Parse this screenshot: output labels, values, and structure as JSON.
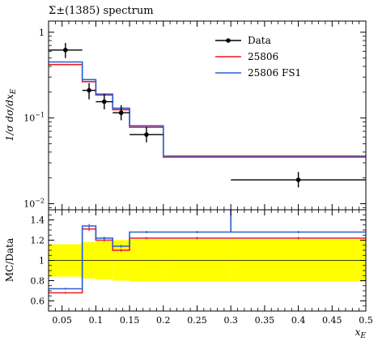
{
  "chart_data": [
    {
      "type": "line",
      "panel": "main",
      "title": "Σ±(1385) spectrum",
      "ylabel": "1/σ dσ/dx_E",
      "xlabel": "",
      "x_scale": "linear",
      "y_scale": "log",
      "xlim": [
        0.03,
        0.5
      ],
      "ylim": [
        0.0085,
        1.35
      ],
      "y_ticks": [
        {
          "value": 1,
          "label": "1"
        },
        {
          "value": 0.1,
          "label": "10^-1"
        },
        {
          "value": 0.01,
          "label": "10^-2"
        }
      ],
      "bin_edges": [
        0.03,
        0.08,
        0.1,
        0.125,
        0.15,
        0.2,
        0.3,
        0.5
      ],
      "series": [
        {
          "name": "Data",
          "style": "points",
          "color": "#000000",
          "points": [
            {
              "x": 0.055,
              "xerr": [
                0.03,
                0.08
              ],
              "y": 0.62,
              "yerr": [
                0.5,
                0.75
              ]
            },
            {
              "x": 0.09,
              "xerr": [
                0.08,
                0.1
              ],
              "y": 0.21,
              "yerr": [
                0.165,
                0.255
              ]
            },
            {
              "x": 0.1125,
              "xerr": [
                0.1,
                0.125
              ],
              "y": 0.155,
              "yerr": [
                0.126,
                0.19
              ]
            },
            {
              "x": 0.1375,
              "xerr": [
                0.125,
                0.15
              ],
              "y": 0.115,
              "yerr": [
                0.094,
                0.141
              ]
            },
            {
              "x": 0.175,
              "xerr": [
                0.15,
                0.2
              ],
              "y": 0.064,
              "yerr": [
                0.052,
                0.079
              ]
            },
            {
              "x": 0.4,
              "xerr": [
                0.3,
                0.5
              ],
              "y": 0.019,
              "yerr": [
                0.0155,
                0.0235
              ]
            }
          ]
        },
        {
          "name": "25806",
          "style": "step",
          "color": "#ee1c25",
          "values": [
            0.42,
            0.265,
            0.185,
            0.125,
            0.078,
            0.035,
            0.035
          ]
        },
        {
          "name": "25806 FS1",
          "style": "step",
          "color": "#2a5fd6",
          "values": [
            0.45,
            0.28,
            0.19,
            0.13,
            0.081,
            0.036,
            0.036
          ]
        }
      ],
      "legend_position": "top-right"
    },
    {
      "type": "line",
      "panel": "ratio",
      "ylabel": "MC/Data",
      "xlabel": "x_E",
      "x_scale": "linear",
      "xlim": [
        0.03,
        0.5
      ],
      "ylim": [
        0.5,
        1.5
      ],
      "x_ticks": [
        0.05,
        0.1,
        0.15,
        0.2,
        0.25,
        0.3,
        0.35,
        0.4,
        0.45,
        0.5
      ],
      "x_tick_labels": [
        "0.05",
        "0.1",
        "0.15",
        "0.2",
        "0.25",
        "0.3",
        "0.35",
        "0.4",
        "0.45",
        "0.5"
      ],
      "y_ticks": [
        0.6,
        0.8,
        1.0,
        1.2,
        1.4
      ],
      "y_tick_labels": [
        "0.6",
        "0.8",
        "1",
        "1.2",
        "1.4"
      ],
      "reference_line": 1.0,
      "band": {
        "color": "#ffff00",
        "lower": [
          0.84,
          0.82,
          0.81,
          0.8,
          0.79,
          0.79,
          0.79
        ],
        "upper": [
          1.16,
          1.18,
          1.19,
          1.2,
          1.21,
          1.21,
          1.21
        ]
      },
      "bin_edges": [
        0.03,
        0.08,
        0.1,
        0.125,
        0.15,
        0.2,
        0.3,
        0.5
      ],
      "series": [
        {
          "name": "25806",
          "color": "#ee1c25",
          "values": [
            0.68,
            1.31,
            1.2,
            1.1,
            1.22,
            1.22,
            1.22
          ],
          "errors": [
            0.01,
            0.02,
            0.015,
            0.015,
            0.012,
            0.012,
            0.012
          ]
        },
        {
          "name": "25806 FS1",
          "color": "#2a5fd6",
          "values": [
            0.72,
            1.34,
            1.22,
            1.14,
            1.28,
            1.28,
            1.28
          ],
          "errors": [
            0.01,
            0.02,
            0.015,
            0.015,
            0.012,
            0.012,
            0.012
          ]
        }
      ]
    }
  ]
}
